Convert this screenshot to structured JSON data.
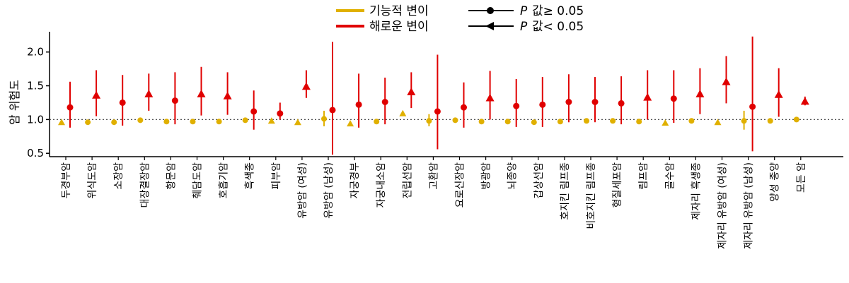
{
  "legend": {
    "functional": "기능적 변이",
    "harmful": "해로운 변이",
    "p_ge": "값≥ 0.05",
    "p_lt": "값< 0.05",
    "p_symbol": "P"
  },
  "colors": {
    "functional": "#e0b000",
    "harmful": "#e00000",
    "axis": "#000000",
    "refline": "#555555"
  },
  "chart_data": {
    "type": "scatter",
    "ylabel": "암 위험도",
    "ylim": [
      0.45,
      2.3
    ],
    "yticks": [
      0.5,
      1.0,
      1.5,
      2.0
    ],
    "yticklabels": [
      "0.5",
      "1.0",
      "1.5",
      "2.0"
    ],
    "reference_line": 1.0,
    "categories": [
      "두경부암",
      "위식도암",
      "소장암",
      "대장결장암",
      "항문암",
      "췌담도암",
      "호흡기암",
      "흑색종",
      "피부암",
      "유방암 (여성)",
      "유방암 (남성)",
      "자궁경부",
      "자궁내소암",
      "전립선암",
      "고환암",
      "요로신장암",
      "방광암",
      "뇌종양",
      "갑상선암",
      "호지킨 림프종",
      "비호지킨 림프종",
      "형질세포암",
      "림프암",
      "골수암",
      "제자리 흑생종",
      "제자리 유방암 (여성)",
      "제자리 유방암 (남성)",
      "양성 종양",
      "모든 암"
    ],
    "series": [
      {
        "name": "기능적 변이",
        "values": [
          0.96,
          0.96,
          0.96,
          0.99,
          0.97,
          0.97,
          0.97,
          0.99,
          0.98,
          0.96,
          1.01,
          0.94,
          0.97,
          1.09,
          0.98,
          0.99,
          0.97,
          0.97,
          0.96,
          0.97,
          0.98,
          0.98,
          0.97,
          0.95,
          0.98,
          0.96,
          0.98,
          0.98,
          1.0
        ],
        "lower": [
          0.95,
          0.95,
          0.95,
          0.98,
          0.96,
          0.96,
          0.96,
          0.98,
          0.97,
          0.95,
          0.9,
          0.93,
          0.96,
          1.08,
          0.9,
          0.98,
          0.96,
          0.94,
          0.94,
          0.95,
          0.96,
          0.95,
          0.95,
          0.93,
          0.96,
          0.94,
          0.85,
          0.96,
          0.99
        ],
        "upper": [
          0.97,
          0.97,
          0.97,
          1.0,
          0.98,
          0.98,
          0.98,
          1.0,
          0.99,
          0.97,
          1.13,
          0.95,
          0.98,
          1.1,
          1.08,
          1.0,
          0.98,
          1.0,
          0.98,
          0.99,
          1.0,
          1.01,
          0.99,
          0.97,
          1.0,
          0.98,
          1.13,
          1.0,
          1.01
        ],
        "significant": [
          true,
          false,
          false,
          false,
          false,
          false,
          false,
          false,
          true,
          true,
          false,
          true,
          false,
          true,
          false,
          false,
          false,
          false,
          false,
          false,
          false,
          false,
          false,
          true,
          false,
          true,
          false,
          false,
          false
        ]
      },
      {
        "name": "해로운 변이",
        "values": [
          1.18,
          1.36,
          1.25,
          1.38,
          1.28,
          1.38,
          1.35,
          1.12,
          1.09,
          1.49,
          1.14,
          1.22,
          1.26,
          1.41,
          1.12,
          1.18,
          1.32,
          1.2,
          1.22,
          1.26,
          1.26,
          1.24,
          1.33,
          1.31,
          1.38,
          1.56,
          1.19,
          1.37,
          1.27
        ],
        "lower": [
          0.88,
          1.05,
          0.91,
          1.13,
          0.93,
          1.06,
          1.07,
          0.85,
          1.0,
          1.32,
          0.48,
          0.88,
          0.93,
          1.17,
          0.56,
          0.88,
          1.0,
          0.89,
          0.89,
          0.96,
          0.96,
          0.93,
          1.0,
          0.95,
          1.08,
          1.24,
          0.53,
          1.04,
          1.21
        ],
        "upper": [
          1.56,
          1.73,
          1.66,
          1.68,
          1.7,
          1.78,
          1.7,
          1.43,
          1.25,
          1.73,
          2.15,
          1.68,
          1.62,
          1.7,
          1.96,
          1.55,
          1.72,
          1.6,
          1.63,
          1.67,
          1.63,
          1.64,
          1.73,
          1.73,
          1.76,
          1.94,
          2.23,
          1.76,
          1.34
        ],
        "significant": [
          false,
          true,
          false,
          true,
          false,
          true,
          true,
          false,
          false,
          true,
          false,
          false,
          false,
          true,
          false,
          false,
          true,
          false,
          false,
          false,
          false,
          false,
          true,
          false,
          true,
          true,
          false,
          true,
          true
        ]
      }
    ]
  }
}
